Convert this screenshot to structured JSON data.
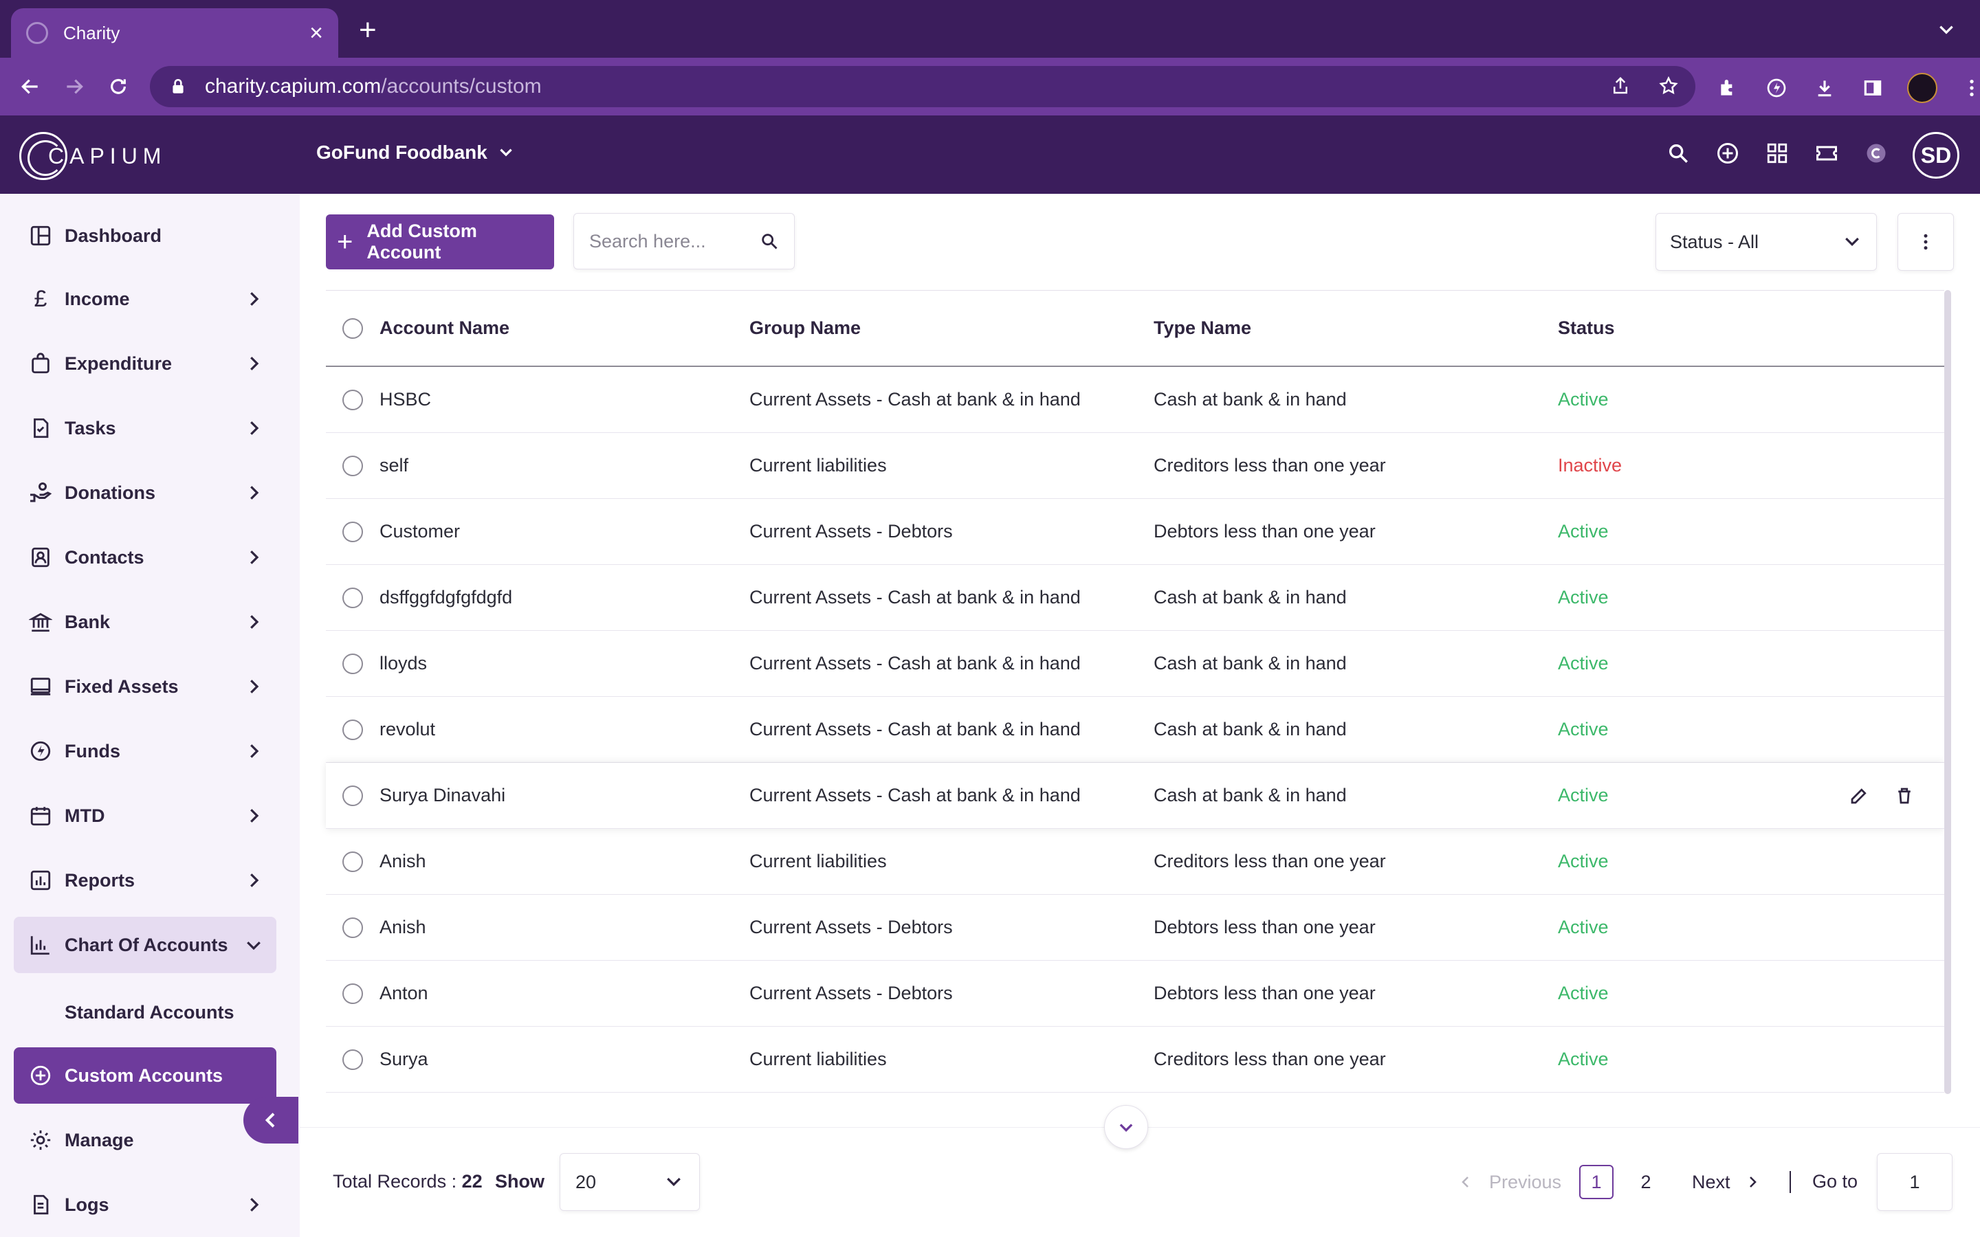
{
  "browser": {
    "tab_title": "Charity",
    "url_host": "charity.capium.com",
    "url_path": "/accounts/custom"
  },
  "app": {
    "logo_text": "CAPIUM",
    "organization": "GoFund Foodbank",
    "user_initials": "SD"
  },
  "sidebar": {
    "items": [
      {
        "label": "Dashboard",
        "icon": "dashboard-icon"
      },
      {
        "label": "Income",
        "icon": "pound-icon"
      },
      {
        "label": "Expenditure",
        "icon": "bag-icon"
      },
      {
        "label": "Tasks",
        "icon": "task-icon"
      },
      {
        "label": "Donations",
        "icon": "donation-icon"
      },
      {
        "label": "Contacts",
        "icon": "contacts-icon"
      },
      {
        "label": "Bank",
        "icon": "bank-icon"
      },
      {
        "label": "Fixed Assets",
        "icon": "laptop-icon"
      },
      {
        "label": "Funds",
        "icon": "funds-icon"
      },
      {
        "label": "MTD",
        "icon": "calendar-icon"
      },
      {
        "label": "Reports",
        "icon": "reports-icon"
      },
      {
        "label": "Chart Of Accounts",
        "icon": "chart-icon"
      },
      {
        "label": "Custom Accounts",
        "icon": "plus-circle-icon"
      },
      {
        "label": "Manage",
        "icon": "gear-icon"
      },
      {
        "label": "Logs",
        "icon": "logs-icon"
      }
    ],
    "sub_items": [
      {
        "label": "Standard Accounts"
      }
    ]
  },
  "toolbar": {
    "add_label": "Add Custom Account",
    "search_placeholder": "Search here...",
    "status_filter": "Status - All"
  },
  "table": {
    "headers": [
      "Account Name",
      "Group Name",
      "Type Name",
      "Status"
    ],
    "rows": [
      {
        "account": "HSBC",
        "group": "Current Assets - Cash at bank & in hand",
        "type": "Cash at bank & in hand",
        "status": "Active"
      },
      {
        "account": "self",
        "group": "Current liabilities",
        "type": "Creditors less than one year",
        "status": "Inactive"
      },
      {
        "account": "Customer",
        "group": "Current Assets - Debtors",
        "type": "Debtors less than one year",
        "status": "Active"
      },
      {
        "account": "dsffggfdgfgfdgfd",
        "group": "Current Assets - Cash at bank & in hand",
        "type": "Cash at bank & in hand",
        "status": "Active"
      },
      {
        "account": "lloyds",
        "group": "Current Assets - Cash at bank & in hand",
        "type": "Cash at bank & in hand",
        "status": "Active"
      },
      {
        "account": "revolut",
        "group": "Current Assets - Cash at bank & in hand",
        "type": "Cash at bank & in hand",
        "status": "Active"
      },
      {
        "account": "Surya Dinavahi",
        "group": "Current Assets - Cash at bank & in hand",
        "type": "Cash at bank & in hand",
        "status": "Active"
      },
      {
        "account": "Anish",
        "group": "Current liabilities",
        "type": "Creditors less than one year",
        "status": "Active"
      },
      {
        "account": "Anish",
        "group": "Current Assets - Debtors",
        "type": "Debtors less than one year",
        "status": "Active"
      },
      {
        "account": "Anton",
        "group": "Current Assets - Debtors",
        "type": "Debtors less than one year",
        "status": "Active"
      },
      {
        "account": "Surya",
        "group": "Current liabilities",
        "type": "Creditors less than one year",
        "status": "Active"
      }
    ]
  },
  "footer": {
    "total_label": "Total Records :",
    "total_value": "22",
    "show_label": "Show",
    "page_size": "20",
    "prev_label": "Previous",
    "pages": [
      "1",
      "2"
    ],
    "next_label": "Next",
    "goto_label": "Go to",
    "goto_value": "1"
  },
  "colors": {
    "brand_dark": "#3b1d5c",
    "brand": "#6e3b9c",
    "active": "#3cb86a",
    "inactive": "#e0454a"
  }
}
